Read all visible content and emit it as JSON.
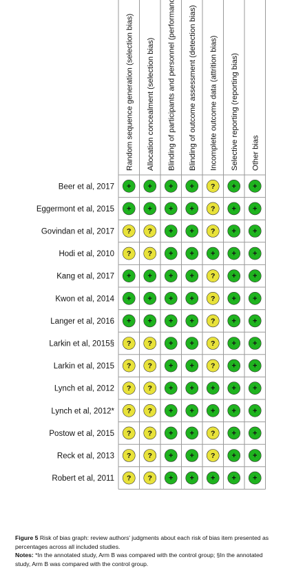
{
  "chart_data": {
    "type": "table",
    "title": "",
    "columns": [
      "Random sequence generation (selection bias)",
      "Allocation concealment (selection bias)",
      "Blinding of participants and personnel (performance bias)",
      "Blinding of outcome assessment (detection bias)",
      "Incomplete outcome data (attrition bias)",
      "Selective reporting (reporting bias)",
      "Other bias"
    ],
    "rows": [
      {
        "study": "Beer et al, 2017",
        "values": [
          "low",
          "low",
          "low",
          "low",
          "unclear",
          "low",
          "low"
        ]
      },
      {
        "study": "Eggermont et al, 2015",
        "values": [
          "low",
          "low",
          "low",
          "low",
          "unclear",
          "low",
          "low"
        ]
      },
      {
        "study": "Govindan et al, 2017",
        "values": [
          "unclear",
          "unclear",
          "low",
          "low",
          "unclear",
          "low",
          "low"
        ]
      },
      {
        "study": "Hodi et al, 2010",
        "values": [
          "unclear",
          "unclear",
          "low",
          "low",
          "low",
          "low",
          "low"
        ]
      },
      {
        "study": "Kang et al, 2017",
        "values": [
          "low",
          "low",
          "low",
          "low",
          "unclear",
          "low",
          "low"
        ]
      },
      {
        "study": "Kwon et al, 2014",
        "values": [
          "low",
          "low",
          "low",
          "low",
          "unclear",
          "low",
          "low"
        ]
      },
      {
        "study": "Langer et al, 2016",
        "values": [
          "low",
          "low",
          "low",
          "low",
          "unclear",
          "low",
          "low"
        ]
      },
      {
        "study": "Larkin et al, 2015§",
        "values": [
          "unclear",
          "unclear",
          "low",
          "low",
          "unclear",
          "low",
          "low"
        ]
      },
      {
        "study": "Larkin et al, 2015",
        "values": [
          "unclear",
          "unclear",
          "low",
          "low",
          "unclear",
          "low",
          "low"
        ]
      },
      {
        "study": "Lynch et al, 2012",
        "values": [
          "unclear",
          "unclear",
          "low",
          "low",
          "low",
          "low",
          "low"
        ]
      },
      {
        "study": "Lynch et al, 2012*",
        "values": [
          "unclear",
          "unclear",
          "low",
          "low",
          "low",
          "low",
          "low"
        ]
      },
      {
        "study": "Postow et al, 2015",
        "values": [
          "unclear",
          "unclear",
          "low",
          "low",
          "unclear",
          "low",
          "low"
        ]
      },
      {
        "study": "Reck et al, 2013",
        "values": [
          "unclear",
          "unclear",
          "low",
          "low",
          "unclear",
          "low",
          "low"
        ]
      },
      {
        "study": "Robert et al, 2011",
        "values": [
          "unclear",
          "unclear",
          "low",
          "low",
          "low",
          "low",
          "low"
        ]
      }
    ],
    "symbols": {
      "low": "+",
      "unclear": "?"
    },
    "colors": {
      "low": "#1fb31f",
      "unclear": "#e8e23a",
      "grid": "#999999"
    }
  },
  "caption": {
    "figure_label": "Figure 5",
    "figure_text": " Risk of bias graph: review authors' judgments about each risk of bias item presented as percentages across all included studies.",
    "notes_label": "Notes:",
    "notes_text": " *In the annotated study, Arm B was compared with the control group; §In the annotated study, Arm B was compared with the control group."
  }
}
